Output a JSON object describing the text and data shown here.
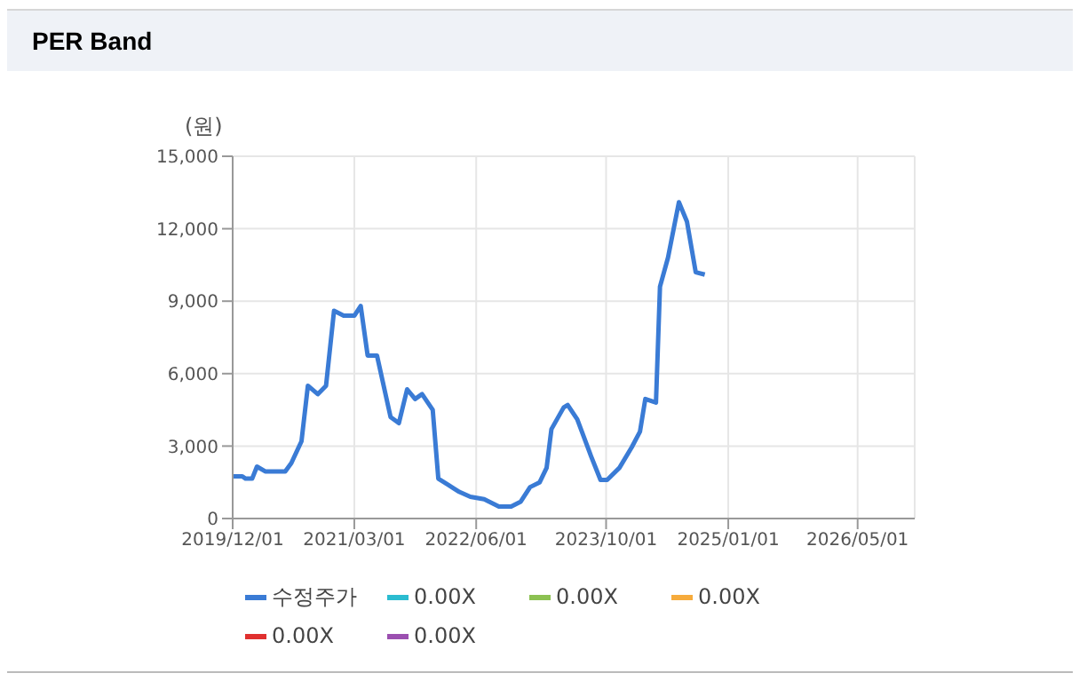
{
  "chart_data": {
    "type": "line",
    "title": "PER Band",
    "ylabel": "(원)",
    "x": [
      "2019-12-01",
      "2020-01-06",
      "2020-01-18",
      "2020-02-12",
      "2020-03-01",
      "2020-04-01",
      "2020-06-15",
      "2020-07-08",
      "2020-08-15",
      "2020-09-08",
      "2020-10-15",
      "2020-11-15",
      "2020-12-15",
      "2021-01-20",
      "2021-03-01",
      "2021-03-25",
      "2021-04-20",
      "2021-05-25",
      "2021-07-15",
      "2021-08-15",
      "2021-09-15",
      "2021-10-15",
      "2021-11-10",
      "2021-12-20",
      "2022-01-10",
      "2022-02-15",
      "2022-03-30",
      "2022-05-10",
      "2022-07-01",
      "2022-08-25",
      "2022-10-10",
      "2022-11-15",
      "2022-12-20",
      "2023-01-25",
      "2023-02-20",
      "2023-03-10",
      "2023-04-25",
      "2023-05-10",
      "2023-06-15",
      "2023-08-05",
      "2023-09-10",
      "2023-10-05",
      "2023-11-20",
      "2024-01-05",
      "2024-02-05",
      "2024-02-25",
      "2024-04-05",
      "2024-04-20",
      "2024-05-20",
      "2024-06-30",
      "2024-07-30",
      "2024-09-01",
      "2024-10-05"
    ],
    "series": [
      {
        "name": "수정주가",
        "color": "#3a7bd5",
        "values": [
          1750,
          1750,
          1650,
          1650,
          2150,
          1950,
          1950,
          2300,
          3200,
          5500,
          5150,
          5500,
          8600,
          8400,
          8400,
          8800,
          6750,
          6750,
          4200,
          3950,
          5350,
          4950,
          5150,
          4500,
          1650,
          1400,
          1100,
          900,
          800,
          500,
          500,
          700,
          1300,
          1500,
          2100,
          3700,
          4600,
          4700,
          4100,
          2600,
          1600,
          1600,
          2100,
          2950,
          3600,
          4950,
          4800,
          9600,
          10800,
          13100,
          12300,
          10200,
          10100
        ]
      },
      {
        "name": "0.00X",
        "color": "#2bbcd0",
        "values": [
          null,
          null,
          null,
          null,
          null,
          null,
          null,
          null,
          null,
          null,
          null,
          null,
          null,
          null,
          null,
          null,
          null,
          null,
          null,
          null,
          null,
          null,
          null,
          null,
          null,
          null,
          null,
          null,
          null,
          null,
          null,
          null,
          null,
          null,
          null,
          null,
          null,
          null,
          null,
          null,
          null,
          null,
          null,
          null,
          null,
          null,
          null,
          null,
          null,
          null,
          null,
          null,
          null
        ]
      },
      {
        "name": "0.00X",
        "color": "#8cc152",
        "values": [
          null,
          null,
          null,
          null,
          null,
          null,
          null,
          null,
          null,
          null,
          null,
          null,
          null,
          null,
          null,
          null,
          null,
          null,
          null,
          null,
          null,
          null,
          null,
          null,
          null,
          null,
          null,
          null,
          null,
          null,
          null,
          null,
          null,
          null,
          null,
          null,
          null,
          null,
          null,
          null,
          null,
          null,
          null,
          null,
          null,
          null,
          null,
          null,
          null,
          null,
          null,
          null,
          null
        ]
      },
      {
        "name": "0.00X",
        "color": "#f6ab3c",
        "values": [
          null,
          null,
          null,
          null,
          null,
          null,
          null,
          null,
          null,
          null,
          null,
          null,
          null,
          null,
          null,
          null,
          null,
          null,
          null,
          null,
          null,
          null,
          null,
          null,
          null,
          null,
          null,
          null,
          null,
          null,
          null,
          null,
          null,
          null,
          null,
          null,
          null,
          null,
          null,
          null,
          null,
          null,
          null,
          null,
          null,
          null,
          null,
          null,
          null,
          null,
          null,
          null,
          null
        ]
      },
      {
        "name": "0.00X",
        "color": "#e0302f",
        "values": [
          null,
          null,
          null,
          null,
          null,
          null,
          null,
          null,
          null,
          null,
          null,
          null,
          null,
          null,
          null,
          null,
          null,
          null,
          null,
          null,
          null,
          null,
          null,
          null,
          null,
          null,
          null,
          null,
          null,
          null,
          null,
          null,
          null,
          null,
          null,
          null,
          null,
          null,
          null,
          null,
          null,
          null,
          null,
          null,
          null,
          null,
          null,
          null,
          null,
          null,
          null,
          null,
          null
        ]
      },
      {
        "name": "0.00X",
        "color": "#9b4fb0",
        "values": [
          null,
          null,
          null,
          null,
          null,
          null,
          null,
          null,
          null,
          null,
          null,
          null,
          null,
          null,
          null,
          null,
          null,
          null,
          null,
          null,
          null,
          null,
          null,
          null,
          null,
          null,
          null,
          null,
          null,
          null,
          null,
          null,
          null,
          null,
          null,
          null,
          null,
          null,
          null,
          null,
          null,
          null,
          null,
          null,
          null,
          null,
          null,
          null,
          null,
          null,
          null,
          null,
          null
        ]
      }
    ],
    "xlim": [
      "2019-12-01",
      "2026-12-01"
    ],
    "xticks": [
      {
        "value": "2019-12-01",
        "label": "2019/12/01"
      },
      {
        "value": "2021-03-01",
        "label": "2021/03/01"
      },
      {
        "value": "2022-06-01",
        "label": "2022/06/01"
      },
      {
        "value": "2023-10-01",
        "label": "2023/10/01"
      },
      {
        "value": "2025-01-01",
        "label": "2025/01/01"
      },
      {
        "value": "2026-05-01",
        "label": "2026/05/01"
      }
    ],
    "ylim": [
      0,
      15000
    ],
    "yticks": [
      0,
      {
        "value": 3000,
        "label": "3,000"
      },
      {
        "value": 6000,
        "label": "6,000"
      },
      {
        "value": 9000,
        "label": "9,000"
      },
      {
        "value": 12000,
        "label": "12,000"
      },
      {
        "value": 15000,
        "label": "15,000"
      }
    ],
    "grid": true,
    "legend": "bottom",
    "line_style": "solid",
    "marker": "none"
  }
}
